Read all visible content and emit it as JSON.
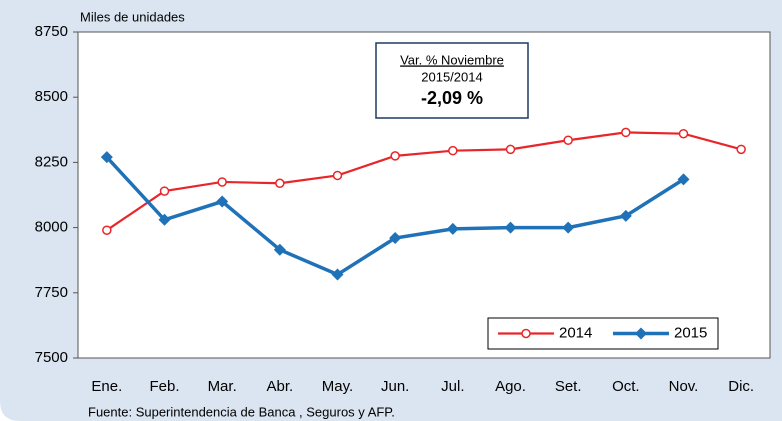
{
  "chart_data": {
    "type": "line",
    "y_axis_label": "Miles de unidades",
    "source": "Fuente: Superintendencia de Banca , Seguros y AFP.",
    "categories": [
      "Ene.",
      "Feb.",
      "Mar.",
      "Abr.",
      "May.",
      "Jun.",
      "Jul.",
      "Ago.",
      "Set.",
      "Oct.",
      "Nov.",
      "Dic."
    ],
    "series": [
      {
        "name": "2014",
        "color": "#e8262a",
        "marker": "circle",
        "values": [
          7990,
          8140,
          8175,
          8170,
          8200,
          8275,
          8295,
          8300,
          8335,
          8365,
          8360,
          8300
        ]
      },
      {
        "name": "2015",
        "color": "#1f72b8",
        "marker": "diamond",
        "values": [
          8270,
          8030,
          8100,
          7915,
          7820,
          7960,
          7995,
          8000,
          8000,
          8045,
          8185,
          null
        ]
      }
    ],
    "ylim": [
      7500,
      8750
    ],
    "yticks": [
      7500,
      7750,
      8000,
      8250,
      8500,
      8750
    ],
    "grid": false,
    "legend": "lower right",
    "annotation": {
      "title": "Var. % Noviembre",
      "subtitle": "2015/2014",
      "value": "-2,09 %"
    }
  }
}
